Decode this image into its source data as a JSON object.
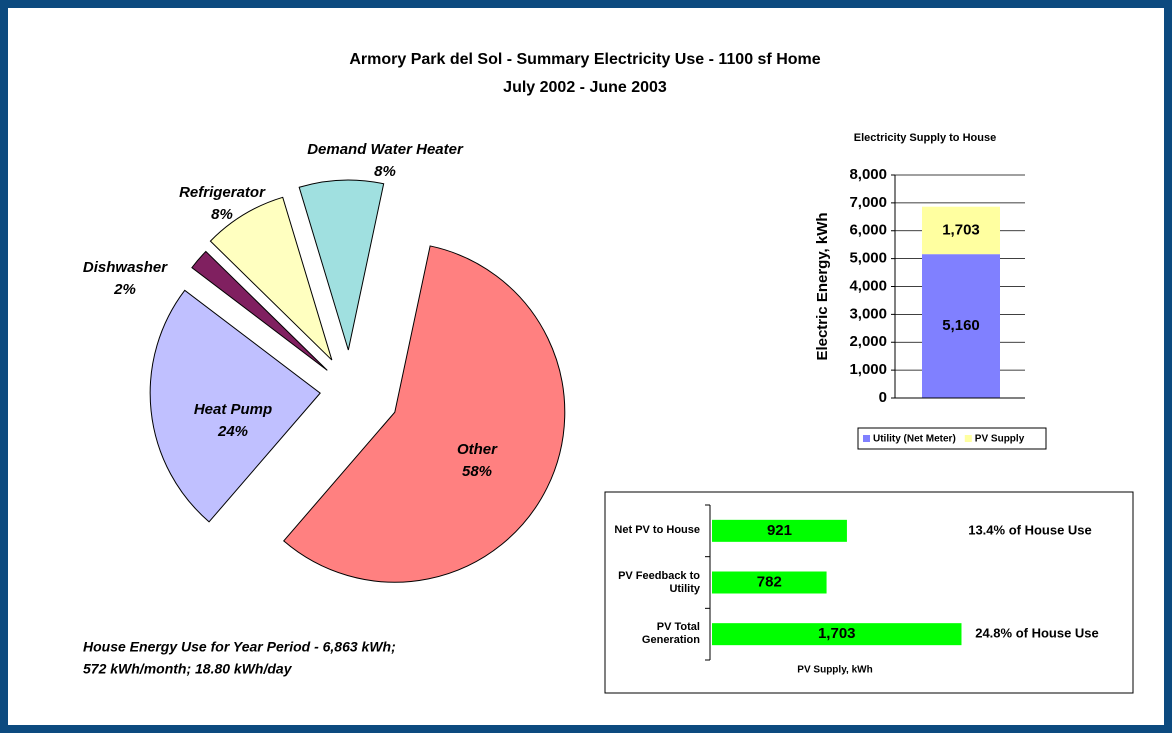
{
  "chart_data": [
    {
      "type": "pie",
      "title": "Armory Park del Sol - Summary Electricity Use - 1100 sf Home",
      "subtitle": "July 2002 - June 2003",
      "categories": [
        "Other",
        "Heat Pump",
        "Dishwasher",
        "Refrigerator",
        "Demand Water Heater"
      ],
      "values": [
        58,
        24,
        2,
        8,
        8
      ],
      "value_labels": [
        "58%",
        "24%",
        "2%",
        "8%",
        "8%"
      ],
      "colors": [
        "#ff8080",
        "#c0c0ff",
        "#802060",
        "#ffffc0",
        "#a0e0e0"
      ],
      "annotation": [
        "House Energy Use for Year Period - 6,863 kWh;",
        "572 kWh/month; 18.80 kWh/day"
      ]
    },
    {
      "type": "stacked_bar",
      "title": "Electricity Supply to House",
      "ylabel": "Electric Energy, kWh",
      "ylim": [
        0,
        8000
      ],
      "yticks": [
        0,
        {
          "value": 1000,
          "label": "1,000"
        },
        {
          "value": 2000,
          "label": "2,000"
        },
        {
          "value": 3000,
          "label": "3,000"
        },
        {
          "value": 4000,
          "label": "4,000"
        },
        {
          "value": 5000,
          "label": "5,000"
        },
        {
          "value": 6000,
          "label": "6,000"
        },
        {
          "value": 7000,
          "label": "7,000"
        },
        {
          "value": 8000,
          "label": "8,000"
        }
      ],
      "grid": true,
      "legend": "bottom",
      "series": [
        {
          "name": "Utility (Net Meter)",
          "color": "#8080ff",
          "values": [
            5160
          ],
          "value_labels": [
            "5,160"
          ]
        },
        {
          "name": "PV Supply",
          "color": "#ffffa0",
          "values": [
            1703
          ],
          "value_labels": [
            "1,703"
          ]
        }
      ]
    },
    {
      "type": "hbar",
      "xlabel": "PV Supply, kWh",
      "categories": [
        "Net PV to House",
        "PV Feedback to Utility",
        "PV Total Generation"
      ],
      "values": [
        921,
        782,
        1703
      ],
      "value_labels": [
        "921",
        "782",
        "1,703"
      ],
      "color": "#00ff00",
      "xlim": [
        0,
        2000
      ],
      "annotations": [
        "13.4% of House Use",
        "24.8% of House Use"
      ]
    }
  ]
}
